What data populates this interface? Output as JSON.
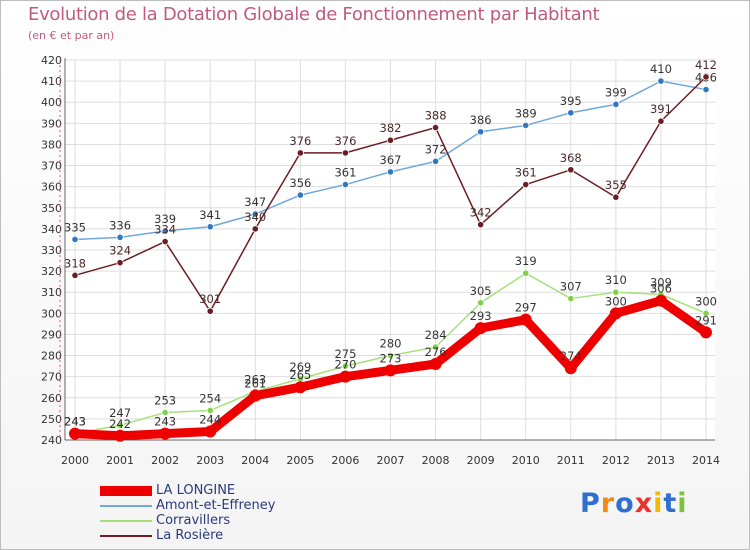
{
  "title": "Evolution de la Dotation Globale de Fonctionnement par Habitant",
  "subtitle": "(en € et par an)",
  "brand": {
    "text": "Proxiti",
    "letter_colors": [
      "#2f6fd0",
      "#f28a1a",
      "#2f6fd0",
      "#e8322a",
      "#f5b800",
      "#2f6fd0",
      "#7cc242"
    ]
  },
  "chart_data": {
    "type": "line",
    "title": "Evolution de la Dotation Globale de Fonctionnement par Habitant",
    "subtitle": "(en € et par an)",
    "xlabel": "",
    "ylabel": "",
    "x": [
      "2000",
      "2001",
      "2002",
      "2003",
      "2004",
      "2005",
      "2006",
      "2007",
      "2008",
      "2009",
      "2010",
      "2011",
      "2012",
      "2013",
      "2014"
    ],
    "ylim": [
      240,
      420
    ],
    "yticks": [
      240,
      250,
      260,
      270,
      280,
      290,
      300,
      310,
      320,
      330,
      340,
      350,
      360,
      370,
      380,
      390,
      400,
      410,
      420
    ],
    "grid": true,
    "legend_position": "bottom-left",
    "series": [
      {
        "name": "Amont-et-Effreney",
        "color": "#6fa8dc",
        "marker": "#2f78c0",
        "values": [
          335,
          336,
          339,
          341,
          347,
          356,
          361,
          367,
          372,
          386,
          389,
          395,
          399,
          410,
          406
        ]
      },
      {
        "name": "Corravillers",
        "color": "#a6e07a",
        "marker": "#7fd14a",
        "values": [
          243,
          247,
          253,
          254,
          263,
          269,
          275,
          280,
          284,
          305,
          319,
          307,
          310,
          309,
          300
        ]
      },
      {
        "name": "La Rosière",
        "color": "#6b1d23",
        "marker": "#6b1d23",
        "values": [
          318,
          324,
          334,
          301,
          340,
          376,
          376,
          382,
          388,
          342,
          361,
          368,
          355,
          391,
          412
        ]
      },
      {
        "name": "LA LONGINE",
        "color": "#ee0000",
        "marker": "#ee0000",
        "values": [
          243,
          242,
          243,
          244,
          261,
          265,
          270,
          273,
          276,
          293,
          297,
          274,
          300,
          306,
          291
        ]
      }
    ],
    "legend_order": [
      "LA LONGINE",
      "Amont-et-Effreney",
      "Corravillers",
      "La Rosière"
    ]
  }
}
